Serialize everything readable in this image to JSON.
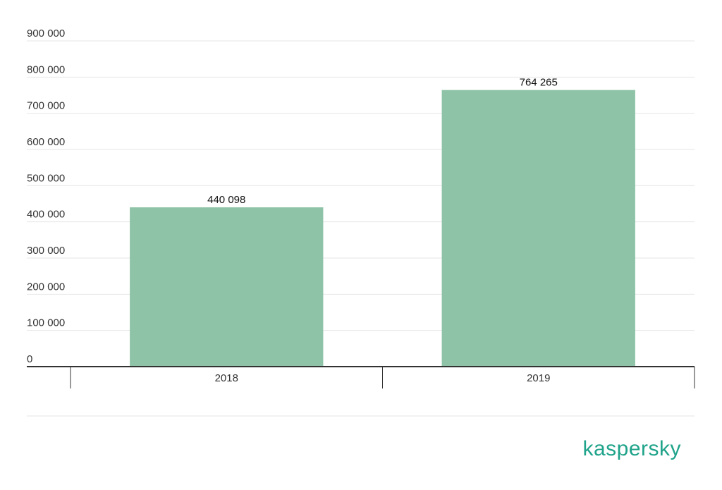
{
  "chart_data": {
    "type": "bar",
    "categories": [
      "2018",
      "2019"
    ],
    "values": [
      440098,
      764265
    ],
    "value_labels": [
      "440 098",
      "764 265"
    ],
    "title": "",
    "xlabel": "",
    "ylabel": "",
    "ylim": [
      0,
      900000
    ],
    "yticks": [
      0,
      100000,
      200000,
      300000,
      400000,
      500000,
      600000,
      700000,
      800000,
      900000
    ],
    "ytick_labels": [
      "0",
      "100 000",
      "200 000",
      "300 000",
      "400 000",
      "500 000",
      "600 000",
      "700 000",
      "800 000",
      "900 000"
    ],
    "grid": true,
    "legend": "none",
    "bar_color": "#8fc3a7"
  },
  "brand": {
    "logo_text": "kaspersky",
    "logo_color": "#1fa38a"
  }
}
